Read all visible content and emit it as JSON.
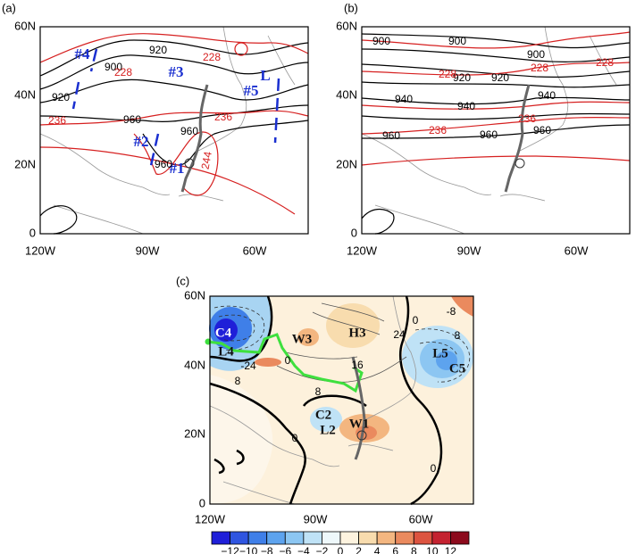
{
  "panels": [
    {
      "label": "(a)",
      "y_labels": [
        "60N",
        "40N",
        "20N",
        "0"
      ],
      "x_labels": [
        "120W",
        "90W",
        "60W"
      ],
      "contour_labels": [
        "900",
        "920",
        "920",
        "960",
        "960",
        "960",
        "228",
        "228",
        "236",
        "236",
        "244"
      ],
      "markers": [
        "#4",
        "#3",
        "#5",
        "#2",
        "#1",
        "L"
      ]
    },
    {
      "label": "(b)",
      "y_labels": [
        "60N",
        "40N",
        "20N",
        "0"
      ],
      "x_labels": [
        "120W",
        "90W",
        "60W"
      ],
      "contour_labels": [
        "900",
        "900",
        "900",
        "920",
        "920",
        "940",
        "940",
        "940",
        "960",
        "960",
        "960",
        "228",
        "228",
        "228",
        "236",
        "236"
      ]
    },
    {
      "label": "(c)",
      "y_labels": [
        "60N",
        "40N",
        "20N",
        "0"
      ],
      "x_labels": [
        "120W",
        "90W",
        "60W"
      ],
      "contour_labels": [
        "0",
        "0",
        "0",
        "0",
        "8",
        "8",
        "8",
        "-24",
        "24",
        "16",
        "-8"
      ],
      "markers": [
        "C4",
        "L4",
        "W3",
        "H3",
        "L5",
        "C5",
        "C2",
        "L2",
        "W1"
      ]
    }
  ],
  "colorbar": {
    "labels": [
      "−12",
      "−10",
      "−8",
      "−6",
      "−4",
      "−2",
      "0",
      "2",
      "4",
      "6",
      "8",
      "10",
      "12"
    ],
    "colors": [
      "#1f1fd8",
      "#2f55e0",
      "#3f7fe8",
      "#5da3ee",
      "#8cc6f2",
      "#bfe2f6",
      "#eef8fb",
      "#fdf3df",
      "#f8dcae",
      "#f3b680",
      "#ea8a5e",
      "#dc5440",
      "#c42230",
      "#8c0a1c"
    ]
  }
}
